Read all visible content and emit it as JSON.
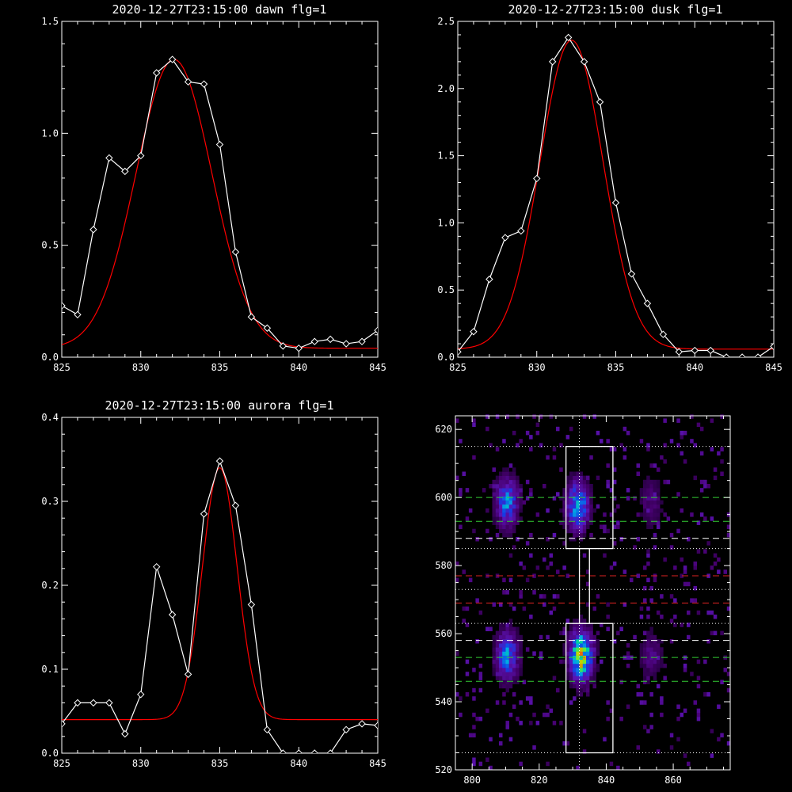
{
  "chart_data": [
    {
      "type": "line",
      "title": "2020-12-27T23:15:00 dawn flg=1",
      "xlim": [
        825,
        845
      ],
      "ylim": [
        0,
        1.5
      ],
      "xticks": [
        825,
        830,
        835,
        840,
        845
      ],
      "yticks": [
        0.0,
        0.5,
        1.0,
        1.5
      ],
      "ytick_labels": [
        "0.0",
        "0.5",
        "1.0",
        "1.5"
      ],
      "series": [
        {
          "color": "#ffffff",
          "marker": "diamond",
          "x": [
            825,
            826,
            827,
            828,
            829,
            830,
            831,
            832,
            833,
            834,
            835,
            836,
            837,
            838,
            839,
            840,
            841,
            842,
            843,
            844,
            845
          ],
          "y": [
            0.23,
            0.19,
            0.57,
            0.89,
            0.83,
            0.9,
            1.27,
            1.33,
            1.23,
            1.22,
            0.95,
            0.47,
            0.18,
            0.13,
            0.05,
            0.04,
            0.07,
            0.08,
            0.06,
            0.07,
            0.12
          ]
        },
        {
          "color": "#ff0000",
          "fit": "gaussian",
          "params": {
            "amplitude": 1.29,
            "center": 832.1,
            "sigma": 2.4,
            "offset": 0.04
          }
        }
      ]
    },
    {
      "type": "line",
      "title": "2020-12-27T23:15:00 dusk flg=1",
      "xlim": [
        825,
        845
      ],
      "ylim": [
        0,
        2.5
      ],
      "xticks": [
        825,
        830,
        835,
        840,
        845
      ],
      "yticks": [
        0.0,
        0.5,
        1.0,
        1.5,
        2.0,
        2.5
      ],
      "ytick_labels": [
        "0.0",
        "0.5",
        "1.0",
        "1.5",
        "2.0",
        "2.5"
      ],
      "series": [
        {
          "color": "#ffffff",
          "marker": "diamond",
          "x": [
            825,
            826,
            827,
            828,
            829,
            830,
            831,
            832,
            833,
            834,
            835,
            836,
            837,
            838,
            839,
            840,
            841,
            842,
            843,
            844,
            845
          ],
          "y": [
            0.04,
            0.19,
            0.58,
            0.89,
            0.94,
            1.33,
            2.2,
            2.38,
            2.2,
            1.9,
            1.15,
            0.62,
            0.4,
            0.17,
            0.04,
            0.05,
            0.05,
            0.0,
            0.0,
            0.0,
            0.08
          ]
        },
        {
          "color": "#ff0000",
          "fit": "gaussian",
          "params": {
            "amplitude": 2.3,
            "center": 832.2,
            "sigma": 2.0,
            "offset": 0.06
          }
        }
      ]
    },
    {
      "type": "line",
      "title": "2020-12-27T23:15:00 aurora flg=1",
      "xlim": [
        825,
        845
      ],
      "ylim": [
        0,
        0.4
      ],
      "xticks": [
        825,
        830,
        835,
        840,
        845
      ],
      "yticks": [
        0.0,
        0.1,
        0.2,
        0.3,
        0.4
      ],
      "ytick_labels": [
        "0.0",
        "0.1",
        "0.2",
        "0.3",
        "0.4"
      ],
      "series": [
        {
          "color": "#ffffff",
          "marker": "diamond",
          "x": [
            825,
            826,
            827,
            828,
            829,
            830,
            831,
            832,
            833,
            834,
            835,
            836,
            837,
            838,
            839,
            840,
            841,
            842,
            843,
            844,
            845
          ],
          "y": [
            0.035,
            0.06,
            0.06,
            0.06,
            0.023,
            0.07,
            0.222,
            0.165,
            0.094,
            0.285,
            0.348,
            0.295,
            0.177,
            0.028,
            0.0,
            0.0,
            0.0,
            0.0,
            0.028,
            0.035,
            0.033
          ]
        },
        {
          "color": "#ff0000",
          "fit": "gaussian",
          "params": {
            "amplitude": 0.3,
            "center": 835.0,
            "sigma": 1.1,
            "offset": 0.04
          }
        }
      ]
    },
    {
      "type": "heatmap",
      "title": "",
      "xlim": [
        795,
        877
      ],
      "ylim": [
        520,
        624
      ],
      "xticks": [
        800,
        820,
        840,
        860
      ],
      "yticks": [
        520,
        540,
        560,
        580,
        600,
        620
      ],
      "colormap": "rainbow",
      "clusters": [
        {
          "x": 810,
          "y": 598,
          "intensity": 0.55
        },
        {
          "x": 810,
          "y": 553,
          "intensity": 0.55
        },
        {
          "x": 831,
          "y": 597,
          "intensity": 0.65
        },
        {
          "x": 832,
          "y": 553,
          "intensity": 0.95
        },
        {
          "x": 853,
          "y": 598,
          "intensity": 0.2
        },
        {
          "x": 853,
          "y": 553,
          "intensity": 0.2
        }
      ],
      "boxes": [
        {
          "x0": 828,
          "x1": 842,
          "y0": 585,
          "y1": 615,
          "color": "#ffffff"
        },
        {
          "x0": 828,
          "x1": 842,
          "y0": 525,
          "y1": 563,
          "color": "#ffffff"
        },
        {
          "x0": 832,
          "x1": 835,
          "y0": 563,
          "y1": 585,
          "color": "#ffffff"
        }
      ],
      "hlines": [
        {
          "y": 615,
          "color": "#ffffff",
          "style": "dotted"
        },
        {
          "y": 600,
          "color": "#33cc33",
          "style": "dashed"
        },
        {
          "y": 593,
          "color": "#33cc33",
          "style": "dashed"
        },
        {
          "y": 588,
          "color": "#ffffff",
          "style": "dashed"
        },
        {
          "y": 585,
          "color": "#ffffff",
          "style": "dotted"
        },
        {
          "y": 577,
          "color": "#dd2222",
          "style": "dashed"
        },
        {
          "y": 573,
          "color": "#ffffff",
          "style": "dotted"
        },
        {
          "y": 569,
          "color": "#dd2222",
          "style": "dashed"
        },
        {
          "y": 563,
          "color": "#ffffff",
          "style": "dotted"
        },
        {
          "y": 558,
          "color": "#ffffff",
          "style": "dashed"
        },
        {
          "y": 553,
          "color": "#33cc33",
          "style": "dashed"
        },
        {
          "y": 546,
          "color": "#33cc33",
          "style": "dashed"
        },
        {
          "y": 525,
          "color": "#ffffff",
          "style": "dotted"
        }
      ],
      "vlines": [
        {
          "x": 832,
          "color": "#ffffff",
          "style": "dotted"
        }
      ]
    }
  ]
}
